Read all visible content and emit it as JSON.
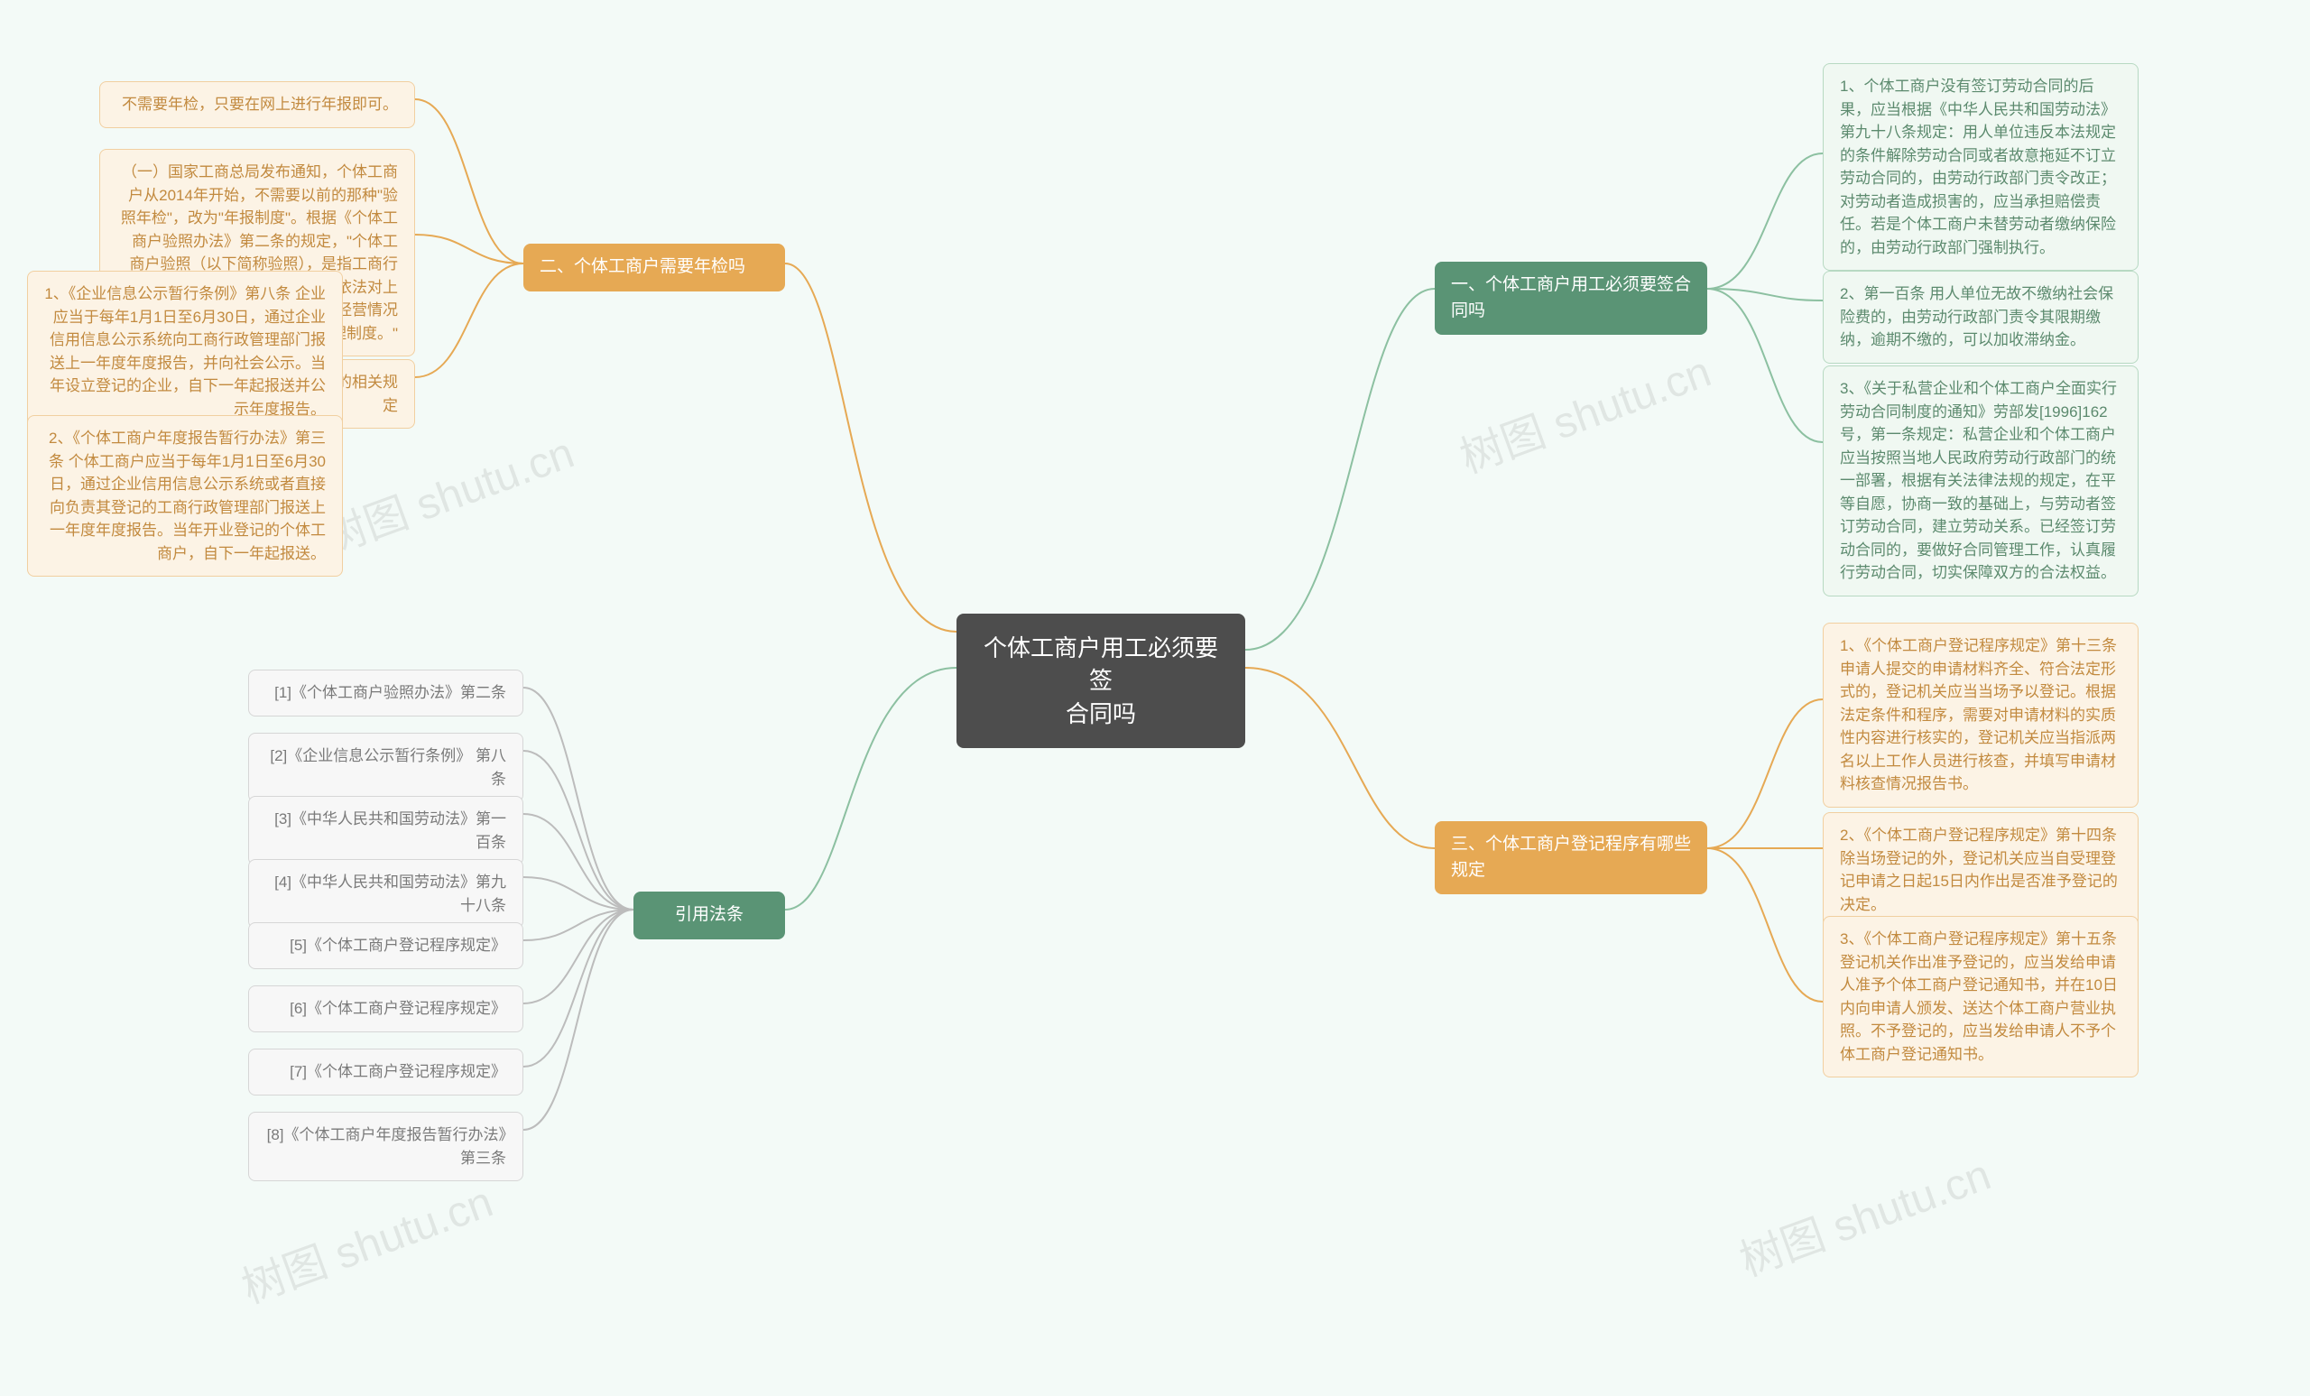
{
  "colors": {
    "background": "#f3faf7",
    "center_bg": "#4d4d4d",
    "green_branch": "#5a9475",
    "orange_branch": "#e6a954",
    "leaf_green_border": "#b7d9c2",
    "leaf_green_fill": "#f0f8f2",
    "leaf_green_text": "#5c8a6e",
    "leaf_orange_border": "#f1cfa0",
    "leaf_orange_fill": "#fcf3e5",
    "leaf_orange_text": "#c28a3f",
    "leaf_gray_border": "#d6d6d6",
    "leaf_gray_fill": "#f7f7f7",
    "leaf_gray_text": "#7a7a7a",
    "conn_green": "#8cc0a1",
    "conn_orange": "#e6a954",
    "conn_gray": "#bcbcbc",
    "watermark": "rgba(0,0,0,0.08)"
  },
  "watermark_text": "树图 shutu.cn",
  "center": {
    "text": "个体工商户用工必须要签\n合同吗"
  },
  "branch1": {
    "title": "一、个体工商户用工必须要签合同吗",
    "items": [
      "1、个体工商户没有签订劳动合同的后果，应当根据《中华人民共和国劳动法》第九十八条规定：用人单位违反本法规定的条件解除劳动合同或者故意拖延不订立劳动合同的，由劳动行政部门责令改正；对劳动者造成损害的，应当承担赔偿责任。若是个体工商户未替劳动者缴纳保险的，由劳动行政部门强制执行。",
      "2、第一百条 用人单位无故不缴纳社会保险费的，由劳动行政部门责令其限期缴纳，逾期不缴的，可以加收滞纳金。",
      "3、《关于私营企业和个体工商户全面实行劳动合同制度的通知》劳部发[1996]162号，第一条规定：私营企业和个体工商户应当按照当地人民政府劳动行政部门的统一部署，根据有关法律法规的规定，在平等自愿，协商一致的基础上，与劳动者签订劳动合同，建立劳动关系。已经签订劳动合同的，要做好合同管理工作，认真履行劳动合同，切实保障双方的合法权益。"
    ]
  },
  "branch3": {
    "title": "三、个体工商户登记程序有哪些规定",
    "items": [
      "1、《个体工商户登记程序规定》第十三条 申请人提交的申请材料齐全、符合法定形式的，登记机关应当当场予以登记。根据法定条件和程序，需要对申请材料的实质性内容进行核实的，登记机关应当指派两名以上工作人员进行核查，并填写申请材料核查情况报告书。",
      "2、《个体工商户登记程序规定》第十四条 除当场登记的外，登记机关应当自受理登记申请之日起15日内作出是否准予登记的决定。",
      "3、《个体工商户登记程序规定》第十五条 登记机关作出准予登记的，应当发给申请人准予个体工商户登记通知书，并在10日内向申请人颁发、送达个体工商户营业执照。不予登记的，应当发给申请人不予个体工商户登记通知书。"
    ]
  },
  "branch2": {
    "title": "二、个体工商户需要年检吗",
    "items": [
      "不需要年检，只要在网上进行年报即可。",
      "（一）国家工商总局发布通知，个体工商户从2014年开始，不需要以前的那种\"验照年检\"，改为\"年报制度\"。根据《个体工商户验照办法》第二条的规定，\"个体工商户验照（以下简称验照），是指工商行政管理机关每年在规定时间内，依法对上一年度个体工商户的登记事项及经营情况进行检查的一项监督管理制度。\""
    ],
    "sub": {
      "title": "（二）年报时间的相关规定",
      "items": [
        "1、《企业信息公示暂行条例》第八条 企业应当于每年1月1日至6月30日，通过企业信用信息公示系统向工商行政管理部门报送上一年度年度报告，并向社会公示。当年设立登记的企业，自下一年起报送并公示年度报告。",
        "2、《个体工商户年度报告暂行办法》第三条 个体工商户应当于每年1月1日至6月30日，通过企业信用信息公示系统或者直接向负责其登记的工商行政管理部门报送上一年度年度报告。当年开业登记的个体工商户，自下一年起报送。"
      ]
    }
  },
  "branch4": {
    "title": "引用法条",
    "items": [
      "[1]《个体工商户验照办法》第二条",
      "[2]《企业信息公示暂行条例》 第八条",
      "[3]《中华人民共和国劳动法》第一百条",
      "[4]《中华人民共和国劳动法》第九十八条",
      "[5]《个体工商户登记程序规定》",
      "[6]《个体工商户登记程序规定》",
      "[7]《个体工商户登记程序规定》",
      "[8]《个体工商户年度报告暂行办法》第三条"
    ]
  }
}
